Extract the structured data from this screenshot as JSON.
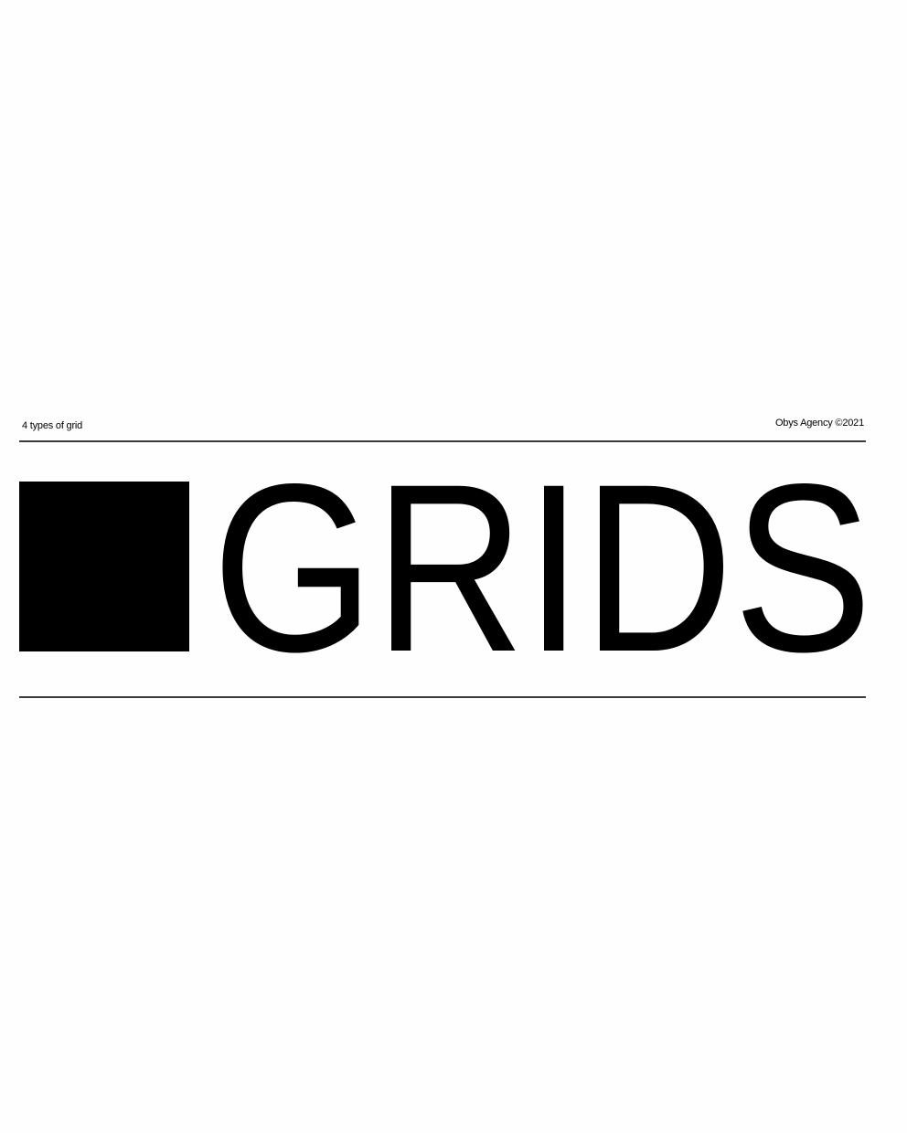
{
  "header": {
    "left_caption": "4 types of grid",
    "right_caption": "Obys Agency ©2021"
  },
  "hero": {
    "block_icon": "filled-square",
    "headline": "GRIDS"
  },
  "colors": {
    "background": "#fefefe",
    "ink": "#000000",
    "rule": "#3a3a3a"
  }
}
